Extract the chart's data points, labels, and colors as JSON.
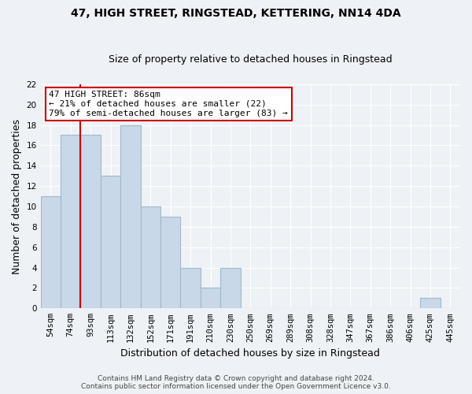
{
  "title_line1": "47, HIGH STREET, RINGSTEAD, KETTERING, NN14 4DA",
  "title_line2": "Size of property relative to detached houses in Ringstead",
  "xlabel": "Distribution of detached houses by size in Ringstead",
  "ylabel": "Number of detached properties",
  "categories": [
    "54sqm",
    "74sqm",
    "93sqm",
    "113sqm",
    "132sqm",
    "152sqm",
    "171sqm",
    "191sqm",
    "210sqm",
    "230sqm",
    "250sqm",
    "269sqm",
    "289sqm",
    "308sqm",
    "328sqm",
    "347sqm",
    "367sqm",
    "386sqm",
    "406sqm",
    "425sqm",
    "445sqm"
  ],
  "values": [
    11,
    17,
    17,
    13,
    18,
    10,
    9,
    4,
    2,
    4,
    0,
    0,
    0,
    0,
    0,
    0,
    0,
    0,
    0,
    1,
    0
  ],
  "bar_color": "#c8d8e8",
  "bar_edgecolor": "#a0b8cc",
  "vline_x_index": 1,
  "vline_color": "#cc0000",
  "annotation_text": "47 HIGH STREET: 86sqm\n← 21% of detached houses are smaller (22)\n79% of semi-detached houses are larger (83) →",
  "annotation_box_color": "#ffffff",
  "annotation_box_edgecolor": "#cc0000",
  "ylim": [
    0,
    22
  ],
  "yticks": [
    0,
    2,
    4,
    6,
    8,
    10,
    12,
    14,
    16,
    18,
    20,
    22
  ],
  "footer_line1": "Contains HM Land Registry data © Crown copyright and database right 2024.",
  "footer_line2": "Contains public sector information licensed under the Open Government Licence v3.0.",
  "background_color": "#eef2f6",
  "grid_color": "#ffffff",
  "title_fontsize": 10,
  "subtitle_fontsize": 9,
  "axis_label_fontsize": 9,
  "tick_fontsize": 7.5,
  "footer_fontsize": 6.5
}
